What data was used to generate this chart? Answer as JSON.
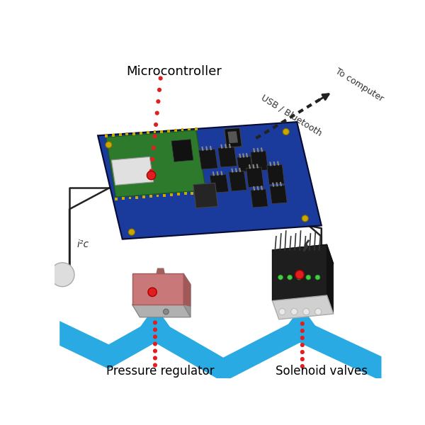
{
  "bg_color": "#ffffff",
  "microcontroller_label": "Microcontroller",
  "pressure_label": "Pressure regulator",
  "solenoid_label": "Solenoid valves",
  "usb_label": "USB / Bluetooth",
  "to_computer_label": "To computer",
  "i2c_label": "i²c",
  "board_color": "#1a3a9c",
  "green_module_color": "#2d7a2d",
  "pressure_pink": "#c87878",
  "pressure_pink_dark": "#a05858",
  "pressure_gray": "#b0b0b0",
  "pressure_gray_dark": "#888888",
  "solenoid_dark": "#1a1a1a",
  "solenoid_gray": "#c0c0c0",
  "arrow_blue": "#29aae2",
  "red_dot": "#e02020",
  "wire_color": "#222222",
  "gold_color": "#c8a800",
  "green_led": "#44cc44"
}
